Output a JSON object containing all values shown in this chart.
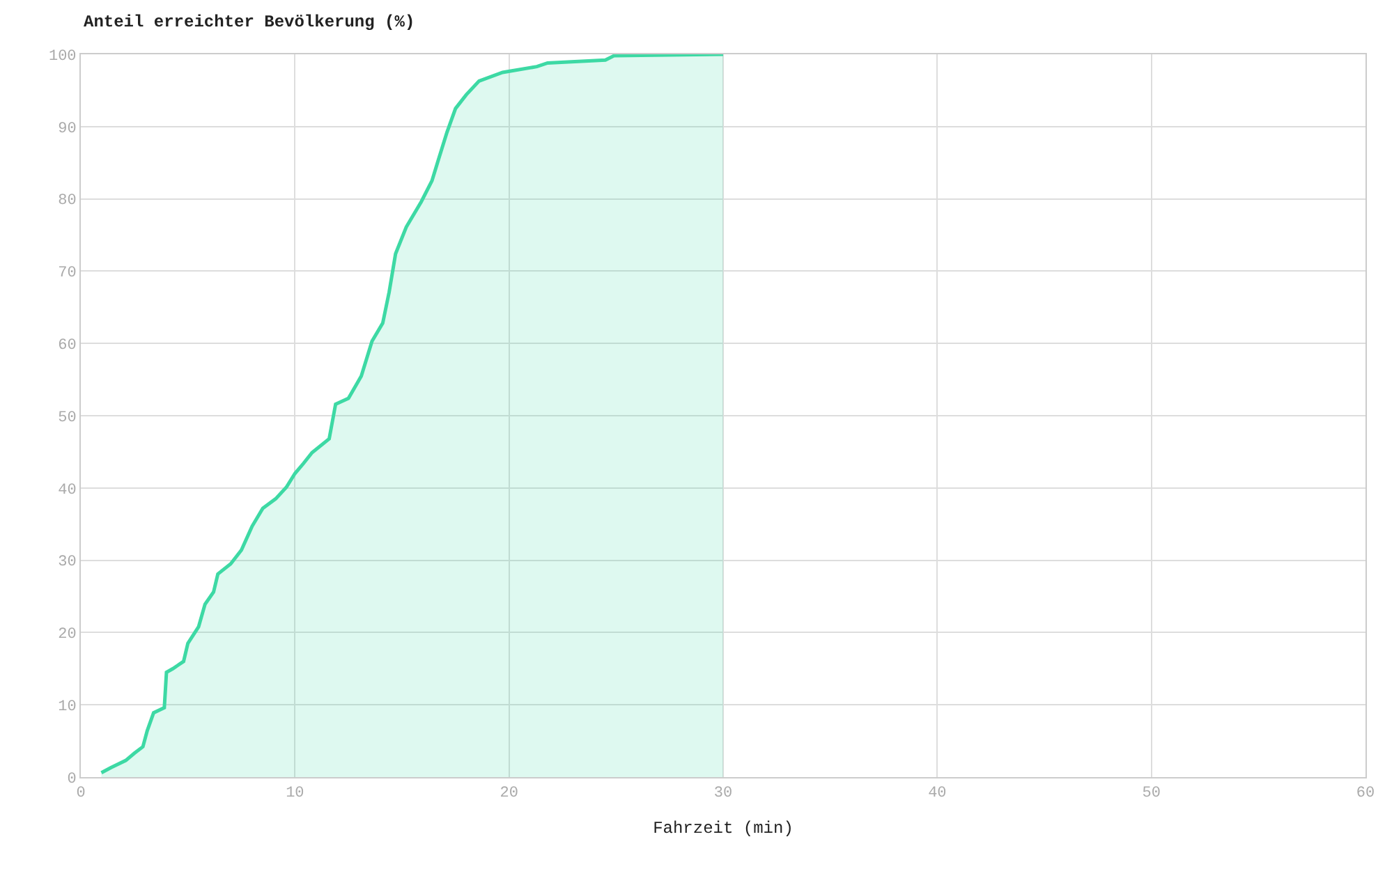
{
  "chart_data": {
    "type": "area",
    "ylabel": "Anteil erreichter Bevölkerung (%)",
    "xlabel": "Fahrzeit (min)",
    "x": [
      0.96,
      1.4,
      2.1,
      2.5,
      2.9,
      3.1,
      3.4,
      3.9,
      4.0,
      4.3,
      4.8,
      5.0,
      5.5,
      5.8,
      6.2,
      6.4,
      7.0,
      7.5,
      8.0,
      8.5,
      9.1,
      9.6,
      10.0,
      10.4,
      10.8,
      11.6,
      11.9,
      12.5,
      13.1,
      13.6,
      14.1,
      14.4,
      14.7,
      15.2,
      15.9,
      16.4,
      16.7,
      17.1,
      17.5,
      18.0,
      18.6,
      19.7,
      21.3,
      21.8,
      24.5,
      24.9,
      30.0
    ],
    "series": [
      {
        "color": "#3dd9a4",
        "values": [
          0.6,
          1.3,
          2.3,
          3.3,
          4.2,
          6.4,
          8.9,
          9.6,
          14.5,
          15.0,
          16.0,
          18.5,
          20.8,
          23.9,
          25.6,
          28.1,
          29.5,
          31.4,
          34.7,
          37.2,
          38.5,
          40.1,
          42.0,
          43.4,
          44.9,
          46.8,
          51.6,
          52.4,
          55.5,
          60.3,
          62.8,
          67.1,
          72.4,
          76.1,
          79.6,
          82.5,
          85.4,
          89.2,
          92.5,
          94.4,
          96.3,
          97.5,
          98.3,
          98.8,
          99.2,
          99.8,
          100
        ]
      }
    ],
    "xlim": [
      0,
      60
    ],
    "xticks": [
      0,
      10,
      20,
      30,
      40,
      50,
      60
    ],
    "ylim": [
      0,
      100
    ],
    "yticks": [
      0,
      10,
      20,
      30,
      40,
      50,
      60,
      70,
      80,
      90,
      100
    ],
    "grid": true
  }
}
